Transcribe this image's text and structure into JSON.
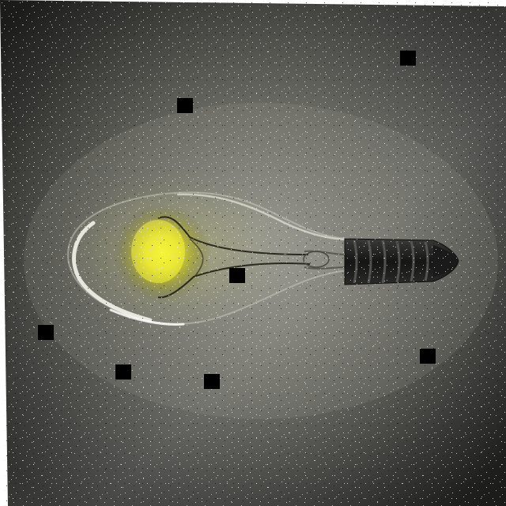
{
  "image": {
    "subject": "light-bulb",
    "colors": {
      "background_dark": "#1c1c1a",
      "background_haze": "#6e6e66",
      "glow_center": "#f4f23a",
      "glow_mid": "#c9c92a",
      "glass_highlight": "#f2f2e6",
      "filament": "#2a2a1e",
      "base_dark": "#141414",
      "base_thread": "#4a4a48",
      "noise_light": "#f0f0f0",
      "occlusion_patch": "#000000"
    }
  }
}
